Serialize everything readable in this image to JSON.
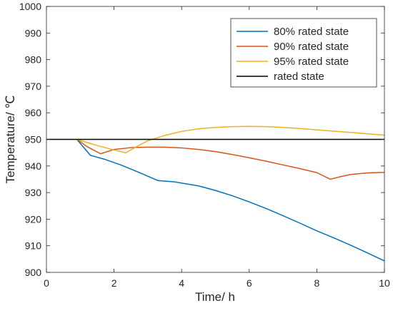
{
  "chart_data": {
    "type": "line",
    "xlabel": "Time/ h",
    "ylabel": "Temperature/ ℃",
    "xlim": [
      0,
      10
    ],
    "ylim": [
      900,
      1000
    ],
    "xticks": [
      "0",
      "2",
      "4",
      "6",
      "8",
      "10"
    ],
    "yticks": [
      "900",
      "910",
      "920",
      "930",
      "940",
      "950",
      "960",
      "970",
      "980",
      "990",
      "1000"
    ],
    "grid": false,
    "legend_position": "top-right",
    "series": [
      {
        "name": "80% rated state",
        "color": "#0072BD",
        "x": [
          0.9,
          1.3,
          1.7,
          2.2,
          2.7,
          3.3,
          3.8,
          4.5,
          5.0,
          5.5,
          6.0,
          6.5,
          7.0,
          7.5,
          8.0,
          8.5,
          9.0,
          9.5,
          10.0
        ],
        "y": [
          950.0,
          944.0,
          942.6,
          940.4,
          937.8,
          934.5,
          934.0,
          932.5,
          930.8,
          928.8,
          926.5,
          924.0,
          921.3,
          918.5,
          915.6,
          913.0,
          910.2,
          907.3,
          904.3
        ]
      },
      {
        "name": "90% rated state",
        "color": "#D95319",
        "x": [
          0.9,
          1.2,
          1.6,
          2.0,
          2.5,
          3.0,
          3.5,
          4.0,
          4.5,
          5.0,
          5.5,
          6.0,
          6.5,
          7.0,
          7.5,
          8.0,
          8.4,
          8.7,
          9.0,
          9.5,
          10.0
        ],
        "y": [
          950.0,
          947.3,
          944.6,
          946.2,
          946.9,
          947.1,
          947.1,
          946.8,
          946.2,
          945.4,
          944.3,
          943.1,
          941.8,
          940.4,
          939.0,
          937.5,
          935.0,
          936.0,
          936.8,
          937.4,
          937.6
        ]
      },
      {
        "name": "95% rated state",
        "color": "#EDB120",
        "x": [
          0.9,
          1.5,
          2.0,
          2.35,
          2.7,
          3.0,
          3.5,
          4.0,
          4.5,
          5.0,
          5.5,
          6.0,
          6.5,
          7.0,
          7.5,
          8.0,
          8.5,
          9.0,
          9.5,
          10.0
        ],
        "y": [
          950.0,
          947.7,
          946.0,
          945.0,
          947.5,
          949.5,
          951.5,
          953.0,
          954.0,
          954.5,
          954.8,
          954.9,
          954.8,
          954.5,
          954.1,
          953.6,
          953.1,
          952.6,
          952.1,
          951.6
        ]
      },
      {
        "name": "rated state",
        "color": "#000000",
        "x": [
          0,
          10
        ],
        "y": [
          950,
          950
        ]
      }
    ]
  }
}
